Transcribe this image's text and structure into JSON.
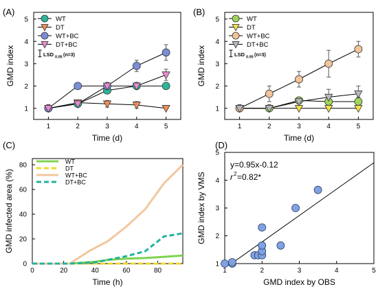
{
  "chart_data": [
    {
      "panel_label": "(A)",
      "type": "line",
      "xlabel": "Time (d)",
      "ylabel": "GMD index",
      "xlim": [
        0.5,
        5.5
      ],
      "ylim": [
        0.5,
        5.3
      ],
      "x_ticks": [
        1,
        2,
        3,
        4,
        5
      ],
      "y_ticks": [
        1,
        2,
        3,
        4,
        5
      ],
      "lsd_label": "LSD",
      "lsd_sub": "0.05",
      "lsd_note": "(n=3)",
      "lsd_value": 0.3,
      "series": [
        {
          "name": "WT",
          "x": [
            1,
            2,
            3,
            4,
            5
          ],
          "y": [
            1.0,
            1.2,
            1.8,
            2.0,
            2.0
          ],
          "err": [
            0,
            0,
            0.1,
            0,
            0
          ],
          "marker": "circle",
          "color": "#2bb69a"
        },
        {
          "name": "DT",
          "x": [
            1,
            2,
            3,
            4,
            5
          ],
          "y": [
            1.0,
            1.25,
            1.2,
            1.15,
            1.0
          ],
          "err": [
            0,
            0,
            0.15,
            0.15,
            0
          ],
          "marker": "triangle-down",
          "color": "#f08c5a"
        },
        {
          "name": "WT+BC",
          "x": [
            1,
            2,
            3,
            4,
            5
          ],
          "y": [
            1.0,
            2.0,
            2.0,
            2.9,
            3.5
          ],
          "err": [
            0,
            0,
            0.1,
            0.25,
            0.35
          ],
          "marker": "circle",
          "color": "#7b8ed6"
        },
        {
          "name": "DT+BC",
          "x": [
            1,
            2,
            3,
            4,
            5
          ],
          "y": [
            1.0,
            1.2,
            2.0,
            2.0,
            2.5
          ],
          "err": [
            0,
            0,
            0.1,
            0.15,
            0.25
          ],
          "marker": "triangle-down",
          "color": "#e88ccf"
        }
      ]
    },
    {
      "panel_label": "(B)",
      "type": "line",
      "xlabel": "Time (d)",
      "ylabel": "GMD index",
      "xlim": [
        0.5,
        5.5
      ],
      "ylim": [
        0.5,
        5.3
      ],
      "x_ticks": [
        1,
        2,
        3,
        4,
        5
      ],
      "y_ticks": [
        1,
        2,
        3,
        4,
        5
      ],
      "lsd_label": "LSD",
      "lsd_sub": "0.05",
      "lsd_note": "(n=3)",
      "lsd_value": 0.3,
      "series": [
        {
          "name": "WT",
          "x": [
            1,
            2,
            3,
            4,
            5
          ],
          "y": [
            1.0,
            1.0,
            1.35,
            1.3,
            1.3
          ],
          "err": [
            0,
            0.1,
            0.15,
            0.2,
            0.2
          ],
          "marker": "circle",
          "color": "#9ed65a"
        },
        {
          "name": "DT",
          "x": [
            1,
            2,
            3,
            4,
            5
          ],
          "y": [
            1.0,
            1.0,
            1.0,
            1.0,
            1.0
          ],
          "err": [
            0,
            0,
            0,
            0,
            0
          ],
          "marker": "triangle-down",
          "color": "#f2e14a"
        },
        {
          "name": "WT+BC",
          "x": [
            1,
            2,
            3,
            4,
            5
          ],
          "y": [
            1.0,
            1.65,
            2.3,
            3.0,
            3.65
          ],
          "err": [
            0,
            0.35,
            0.35,
            0.6,
            0.35
          ],
          "marker": "circle",
          "color": "#f2c49a"
        },
        {
          "name": "DT+BC",
          "x": [
            1,
            2,
            3,
            4,
            5
          ],
          "y": [
            1.0,
            1.0,
            1.3,
            1.5,
            1.65
          ],
          "err": [
            0,
            0.1,
            0.2,
            0.35,
            0.35
          ],
          "marker": "triangle-down",
          "color": "#b8b8c4"
        }
      ]
    },
    {
      "panel_label": "(C)",
      "type": "line",
      "xlabel": "Time (h)",
      "ylabel": "GMD infected area (%)",
      "xlim": [
        0,
        96
      ],
      "ylim": [
        0,
        85
      ],
      "x_ticks": [
        0,
        20,
        40,
        60,
        80
      ],
      "y_ticks": [
        0,
        20,
        40,
        60,
        80
      ],
      "series": [
        {
          "name": "WT",
          "style": "solid",
          "color": "#7ed24f",
          "x": [
            0,
            24,
            40,
            48,
            60,
            72,
            84,
            96
          ],
          "y": [
            0,
            0,
            1.5,
            3,
            4,
            4.5,
            5.5,
            6.5
          ]
        },
        {
          "name": "DT",
          "style": "dashed",
          "color": "#f2d82c",
          "x": [
            0,
            24,
            40,
            48,
            60,
            72,
            84,
            96
          ],
          "y": [
            0,
            0,
            0,
            0,
            0,
            0,
            0,
            0
          ]
        },
        {
          "name": "WT+BC",
          "style": "solid",
          "color": "#f2c79e",
          "x": [
            0,
            24,
            36,
            48,
            60,
            72,
            84,
            96
          ],
          "y": [
            0,
            0,
            10,
            18,
            30,
            44,
            65,
            80
          ]
        },
        {
          "name": "DT+BC",
          "style": "dashed",
          "color": "#1fb39b",
          "x": [
            0,
            24,
            40,
            48,
            60,
            72,
            84,
            96
          ],
          "y": [
            0,
            0,
            1,
            3,
            6,
            10,
            22,
            24.5
          ]
        }
      ]
    },
    {
      "panel_label": "(D)",
      "type": "scatter",
      "xlabel": "GMD index by OBS",
      "ylabel": "GMD index by VMS",
      "xlim": [
        1,
        5
      ],
      "ylim": [
        1,
        5
      ],
      "x_ticks": [
        1,
        2,
        3,
        4,
        5
      ],
      "y_ticks": [
        1,
        2,
        3,
        4,
        5
      ],
      "equation": "y=0.95x-0.12",
      "r_symbol": "r",
      "r_power": "2",
      "r_value": "=0.82*",
      "fit": {
        "slope": 0.95,
        "intercept": -0.12
      },
      "marker_color": "#7fa2e3",
      "points": [
        {
          "x": 1.0,
          "y": 1.0
        },
        {
          "x": 1.2,
          "y": 1.0
        },
        {
          "x": 1.2,
          "y": 1.05
        },
        {
          "x": 1.8,
          "y": 1.3
        },
        {
          "x": 1.9,
          "y": 1.3
        },
        {
          "x": 2.0,
          "y": 1.3
        },
        {
          "x": 2.0,
          "y": 1.45
        },
        {
          "x": 2.0,
          "y": 1.65
        },
        {
          "x": 2.0,
          "y": 2.3
        },
        {
          "x": 2.5,
          "y": 1.65
        },
        {
          "x": 2.9,
          "y": 3.0
        },
        {
          "x": 3.5,
          "y": 3.65
        }
      ]
    }
  ]
}
